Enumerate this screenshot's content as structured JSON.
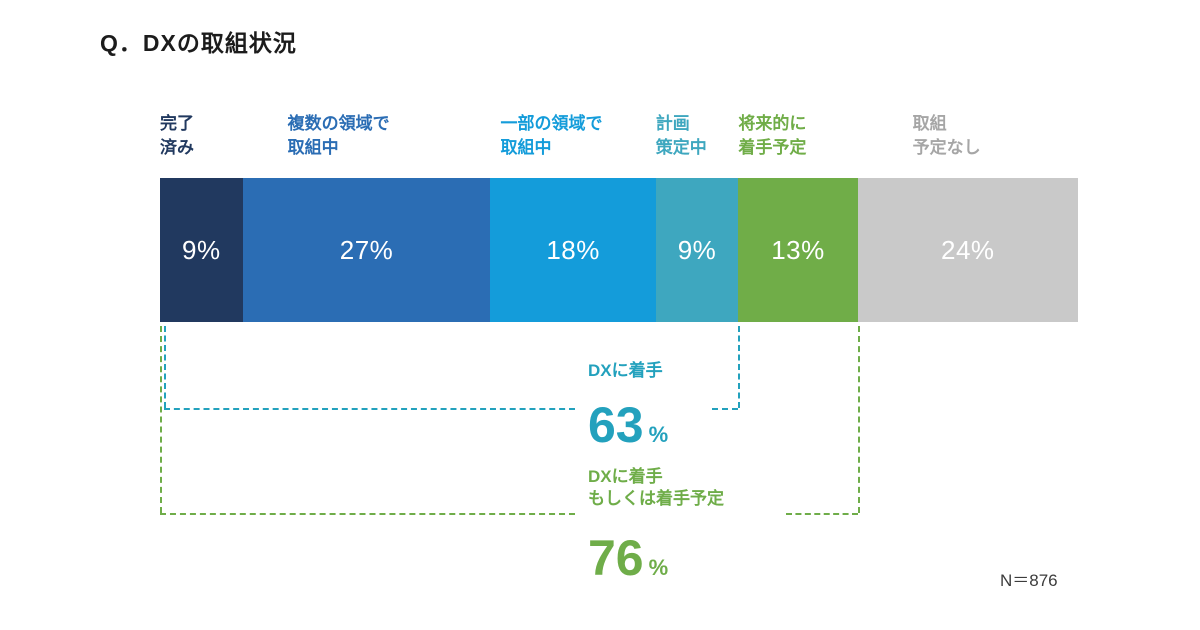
{
  "title": "Q．DXの取組状況",
  "chart_data": {
    "type": "bar",
    "subtype": "horizontal-stacked-100-percent",
    "title": "Q．DXの取組状況",
    "unit": "%",
    "categories": [
      "完了\n済み",
      "複数の領域で\n取組中",
      "一部の領域で\n取組中",
      "計画\n策定中",
      "将来的に\n着手予定",
      "取組\n予定なし"
    ],
    "values": [
      9,
      27,
      18,
      9,
      13,
      24
    ],
    "colors": [
      "#21395f",
      "#2b6db4",
      "#149cda",
      "#3ea7bf",
      "#70ad48",
      "#c9c9c9"
    ],
    "label_colors": [
      "#21395f",
      "#2b6db4",
      "#149cda",
      "#3ea7bf",
      "#70ad48",
      "#a6a6a6"
    ],
    "legend_position": "above-segments",
    "grid": false,
    "annotations": [
      {
        "label": "DXに着手",
        "value": 63,
        "unit": "%",
        "color": "#23a1bd",
        "spans_categories": [
          "完了済み",
          "複数の領域で取組中",
          "一部の領域で取組中",
          "計画策定中"
        ]
      },
      {
        "label": "DXに着手\nもしくは着手予定",
        "value": 76,
        "unit": "%",
        "color": "#6fad49",
        "spans_categories": [
          "完了済み",
          "複数の領域で取組中",
          "一部の領域で取組中",
          "計画策定中",
          "将来的に着手予定"
        ]
      }
    ],
    "n_label": "N＝876"
  }
}
